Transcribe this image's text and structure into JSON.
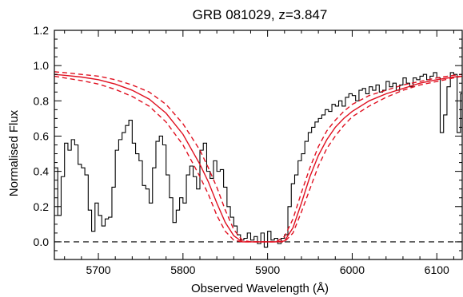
{
  "chart_data": {
    "type": "line",
    "title": "GRB 081029, z=3.847",
    "xlabel": "Observed Wavelength (Å)",
    "ylabel": "Normalised Flux",
    "xlim": [
      5648,
      6130
    ],
    "ylim": [
      -0.1,
      1.2
    ],
    "xticks": [
      {
        "value": 5700,
        "label": "5700"
      },
      {
        "value": 5800,
        "label": "5800"
      },
      {
        "value": 5900,
        "label": "5900"
      },
      {
        "value": 6000,
        "label": "6000"
      },
      {
        "value": 6100,
        "label": "6100"
      }
    ],
    "yticks": [
      {
        "value": 0.0,
        "label": "0.0"
      },
      {
        "value": 0.2,
        "label": "0.2"
      },
      {
        "value": 0.4,
        "label": "0.4"
      },
      {
        "value": 0.6,
        "label": "0.6"
      },
      {
        "value": 0.8,
        "label": "0.8"
      },
      {
        "value": 1.0,
        "label": "1.0"
      },
      {
        "value": 1.2,
        "label": "1.2"
      }
    ],
    "grid": false,
    "reference_line": {
      "y": 0.0,
      "style": "dashed",
      "color": "#000000"
    },
    "series": [
      {
        "style": "step",
        "color": "#000000",
        "x": [
          5648,
          5652,
          5656,
          5660,
          5664,
          5668,
          5672,
          5676,
          5680,
          5684,
          5688,
          5692,
          5696,
          5700,
          5704,
          5708,
          5712,
          5716,
          5720,
          5724,
          5728,
          5732,
          5736,
          5740,
          5744,
          5748,
          5752,
          5756,
          5760,
          5764,
          5768,
          5772,
          5776,
          5780,
          5784,
          5788,
          5792,
          5796,
          5800,
          5804,
          5808,
          5812,
          5816,
          5820,
          5824,
          5828,
          5832,
          5836,
          5840,
          5844,
          5848,
          5852,
          5856,
          5860,
          5864,
          5868,
          5872,
          5876,
          5880,
          5884,
          5888,
          5892,
          5896,
          5900,
          5904,
          5908,
          5912,
          5916,
          5920,
          5924,
          5928,
          5932,
          5936,
          5940,
          5944,
          5948,
          5952,
          5956,
          5960,
          5964,
          5968,
          5972,
          5976,
          5980,
          5984,
          5988,
          5992,
          5996,
          6000,
          6004,
          6008,
          6012,
          6016,
          6020,
          6024,
          6028,
          6032,
          6036,
          6040,
          6044,
          6048,
          6052,
          6056,
          6060,
          6064,
          6068,
          6072,
          6076,
          6080,
          6084,
          6088,
          6092,
          6096,
          6100,
          6104,
          6108,
          6112,
          6116,
          6120,
          6124,
          6128
        ],
        "y": [
          0.42,
          0.15,
          0.37,
          0.56,
          0.52,
          0.58,
          0.55,
          0.44,
          0.42,
          0.38,
          0.18,
          0.06,
          0.22,
          0.15,
          0.09,
          0.13,
          0.14,
          0.31,
          0.52,
          0.58,
          0.62,
          0.66,
          0.69,
          0.56,
          0.5,
          0.46,
          0.32,
          0.3,
          0.22,
          0.42,
          0.57,
          0.6,
          0.55,
          0.38,
          0.25,
          0.11,
          0.18,
          0.25,
          0.22,
          0.38,
          0.43,
          0.37,
          0.3,
          0.52,
          0.56,
          0.4,
          0.36,
          0.46,
          0.4,
          0.41,
          0.31,
          0.2,
          0.14,
          0.09,
          0.04,
          0.01,
          0.02,
          0.05,
          0.01,
          0.03,
          -0.01,
          0.05,
          -0.03,
          0.06,
          0.01,
          0.02,
          -0.01,
          0.02,
          0.04,
          0.2,
          0.33,
          0.38,
          0.46,
          0.5,
          0.57,
          0.62,
          0.65,
          0.68,
          0.7,
          0.72,
          0.75,
          0.74,
          0.78,
          0.77,
          0.8,
          0.77,
          0.82,
          0.84,
          0.83,
          0.8,
          0.86,
          0.87,
          0.84,
          0.88,
          0.86,
          0.89,
          0.85,
          0.86,
          0.91,
          0.88,
          0.9,
          0.86,
          0.89,
          0.93,
          0.9,
          0.88,
          0.93,
          0.92,
          0.94,
          0.95,
          0.92,
          0.94,
          0.96,
          0.93,
          0.62,
          0.72,
          0.88,
          0.96,
          0.95,
          0.62,
          0.84
        ]
      },
      {
        "style": "solid",
        "color": "#e01020",
        "x": [
          5648,
          5660,
          5680,
          5700,
          5720,
          5740,
          5760,
          5780,
          5800,
          5820,
          5830,
          5840,
          5850,
          5860,
          5870,
          5880,
          5890,
          5900,
          5910,
          5920,
          5930,
          5940,
          5950,
          5960,
          5970,
          5980,
          5990,
          6000,
          6020,
          6040,
          6060,
          6080,
          6100,
          6120,
          6130
        ],
        "y": [
          0.95,
          0.945,
          0.935,
          0.92,
          0.895,
          0.86,
          0.81,
          0.73,
          0.61,
          0.44,
          0.34,
          0.22,
          0.11,
          0.035,
          0.0,
          0.0,
          0.0,
          0.0,
          0.0,
          0.005,
          0.08,
          0.22,
          0.37,
          0.49,
          0.58,
          0.65,
          0.7,
          0.74,
          0.8,
          0.84,
          0.87,
          0.9,
          0.92,
          0.935,
          0.94
        ]
      },
      {
        "style": "dashed",
        "color": "#e01020",
        "x": [
          5648,
          5660,
          5680,
          5700,
          5720,
          5740,
          5760,
          5780,
          5800,
          5820,
          5830,
          5840,
          5850,
          5860,
          5870,
          5880,
          5890,
          5900,
          5910,
          5920,
          5930,
          5940,
          5950,
          5960,
          5970,
          5980,
          5990,
          6000,
          6020,
          6040,
          6060,
          6080,
          6100,
          6120,
          6130
        ],
        "y": [
          0.965,
          0.96,
          0.95,
          0.94,
          0.92,
          0.89,
          0.85,
          0.78,
          0.67,
          0.52,
          0.42,
          0.31,
          0.18,
          0.07,
          0.01,
          0.0,
          0.0,
          0.0,
          0.0,
          0.0,
          0.05,
          0.17,
          0.3,
          0.43,
          0.53,
          0.6,
          0.66,
          0.71,
          0.77,
          0.82,
          0.86,
          0.89,
          0.91,
          0.93,
          0.94
        ]
      },
      {
        "style": "dashed",
        "color": "#e01020",
        "x": [
          5648,
          5660,
          5680,
          5700,
          5720,
          5740,
          5760,
          5780,
          5800,
          5820,
          5830,
          5840,
          5850,
          5860,
          5870,
          5880,
          5890,
          5900,
          5910,
          5920,
          5930,
          5940,
          5950,
          5960,
          5970,
          5980,
          5990,
          6000,
          6020,
          6040,
          6060,
          6080,
          6100,
          6120,
          6130
        ],
        "y": [
          0.94,
          0.93,
          0.915,
          0.895,
          0.865,
          0.825,
          0.77,
          0.68,
          0.55,
          0.37,
          0.27,
          0.15,
          0.06,
          0.01,
          0.0,
          0.0,
          0.0,
          0.0,
          0.0,
          0.03,
          0.13,
          0.28,
          0.42,
          0.54,
          0.63,
          0.69,
          0.74,
          0.78,
          0.83,
          0.86,
          0.89,
          0.91,
          0.93,
          0.945,
          0.95
        ]
      }
    ]
  }
}
